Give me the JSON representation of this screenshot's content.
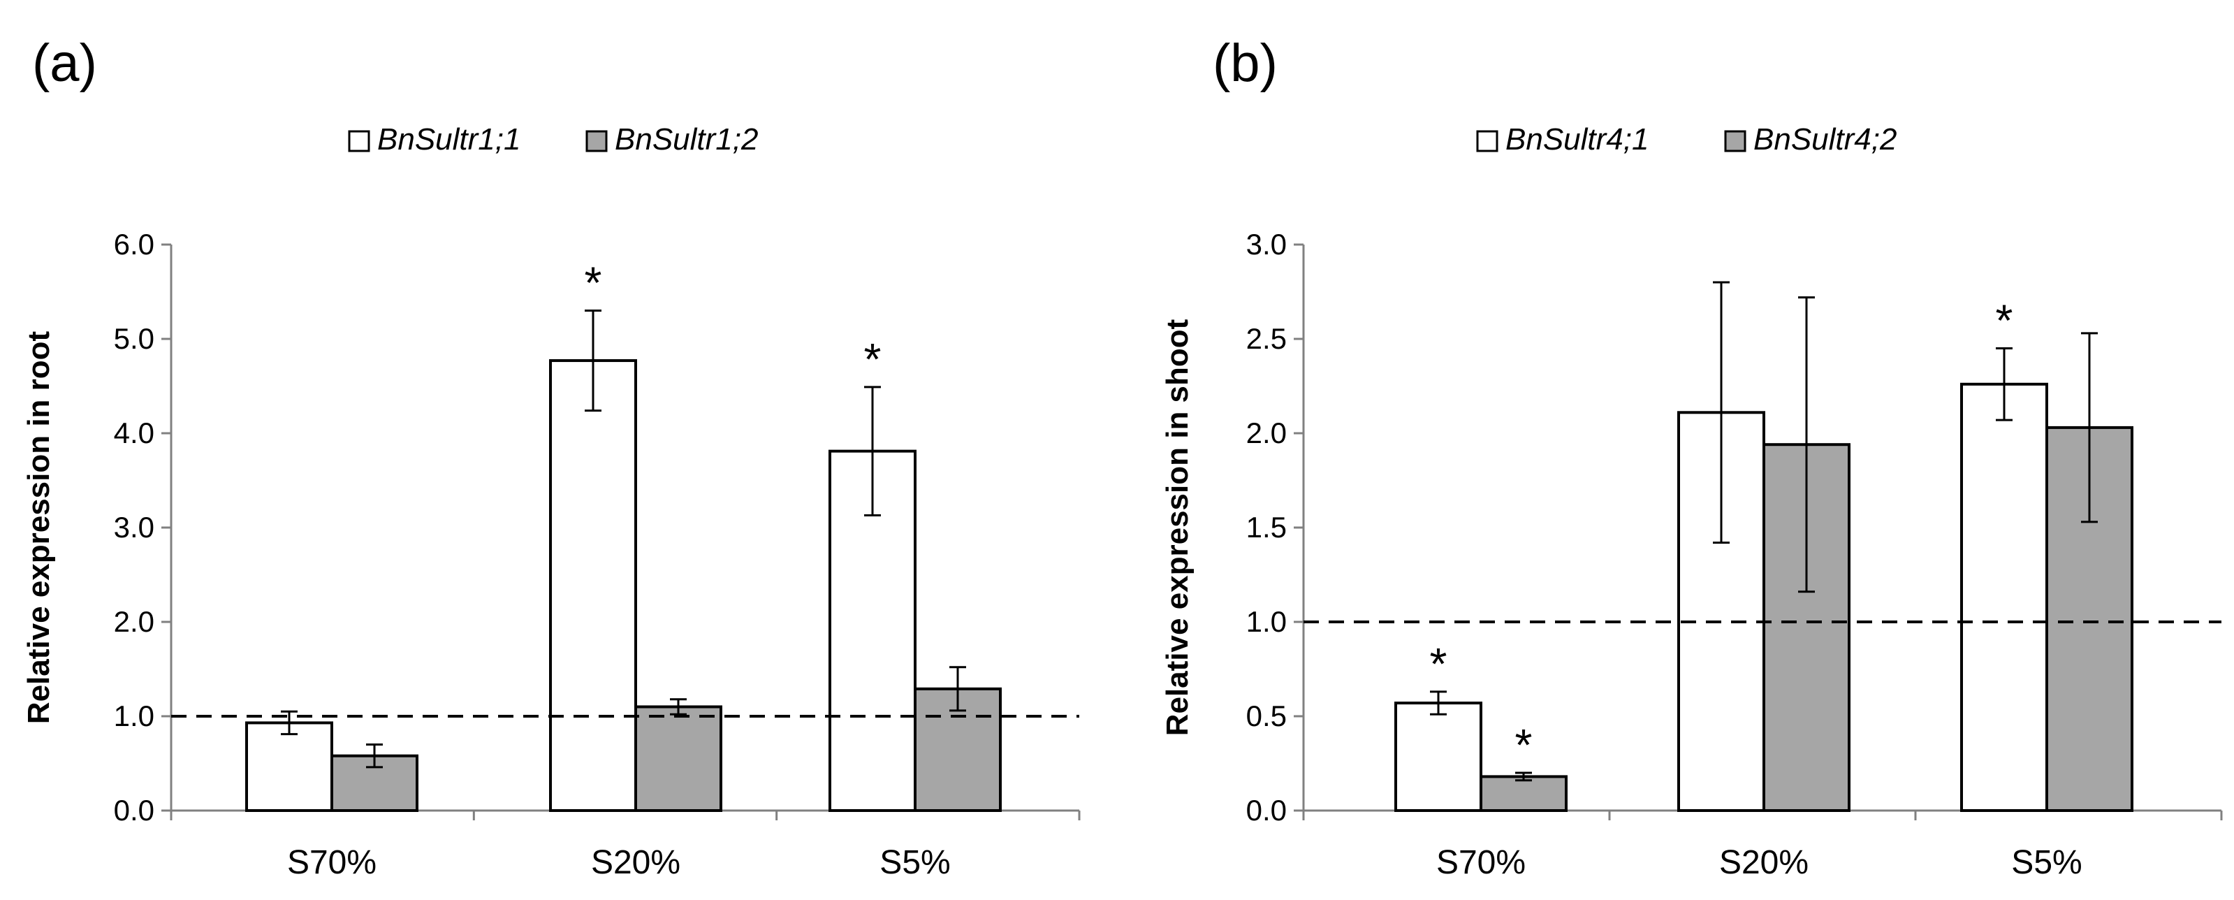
{
  "chart_data": [
    {
      "type": "bar",
      "panel_label": "(a)",
      "ylabel": "Relative expression in root",
      "xlabel": "",
      "ylim": [
        0,
        6
      ],
      "ytick_step": 1,
      "yticks": [
        "0.0",
        "1.0",
        "2.0",
        "3.0",
        "4.0",
        "5.0",
        "6.0"
      ],
      "reference_line": 1.0,
      "categories": [
        "S70%",
        "S20%",
        "S5%"
      ],
      "series": [
        {
          "name": "BnSultr1;1",
          "color": "#ffffff",
          "values": [
            0.93,
            4.77,
            3.81
          ],
          "errors": [
            0.12,
            0.53,
            0.68
          ],
          "significant": [
            false,
            true,
            true
          ]
        },
        {
          "name": "BnSultr1;2",
          "color": "#a6a6a6",
          "values": [
            0.58,
            1.1,
            1.29
          ],
          "errors": [
            0.12,
            0.08,
            0.23
          ],
          "significant": [
            false,
            false,
            false
          ]
        }
      ],
      "significance_marker": "*"
    },
    {
      "type": "bar",
      "panel_label": "(b)",
      "ylabel": "Relative expression in shoot",
      "xlabel": "",
      "ylim": [
        0,
        3
      ],
      "ytick_step": 0.5,
      "yticks": [
        "0.0",
        "0.5",
        "1.0",
        "1.5",
        "2.0",
        "2.5",
        "3.0"
      ],
      "reference_line": 1.0,
      "categories": [
        "S70%",
        "S20%",
        "S5%"
      ],
      "series": [
        {
          "name": "BnSultr4;1",
          "color": "#ffffff",
          "values": [
            0.57,
            2.11,
            2.26
          ],
          "errors": [
            0.06,
            0.69,
            0.19
          ],
          "significant": [
            true,
            false,
            true
          ]
        },
        {
          "name": "BnSultr4;2",
          "color": "#a6a6a6",
          "values": [
            0.18,
            1.94,
            2.03
          ],
          "errors": [
            0.02,
            0.78,
            0.5
          ],
          "significant": [
            true,
            false,
            false
          ]
        }
      ],
      "significance_marker": "*"
    }
  ]
}
